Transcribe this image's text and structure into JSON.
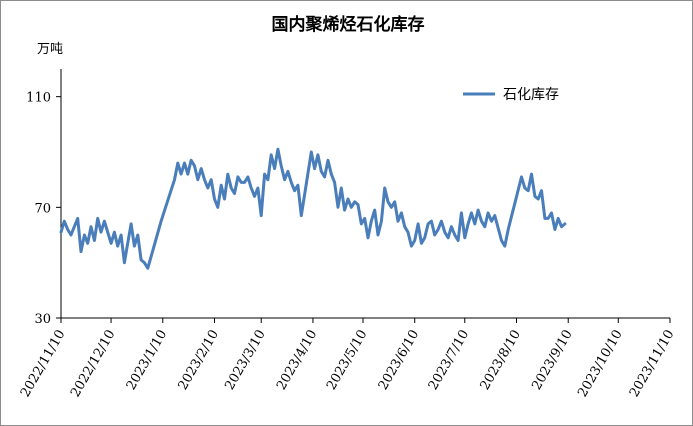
{
  "chart_data": {
    "type": "line",
    "title": "国内聚烯烃石化库存",
    "y_unit": "万吨",
    "ylim": [
      30,
      120
    ],
    "y_ticks": [
      30,
      70,
      110
    ],
    "x_ticks": [
      "2022/11/10",
      "2022/12/10",
      "2023/1/10",
      "2023/2/10",
      "2023/3/10",
      "2023/4/10",
      "2023/5/10",
      "2023/6/10",
      "2023/7/10",
      "2023/8/10",
      "2023/9/10",
      "2023/10/10",
      "2023/11/10"
    ],
    "xlim": [
      "2022/11/10",
      "2023/11/10"
    ],
    "legend_position": "top-right",
    "grid": false,
    "color": "#4a7ebb",
    "series": [
      {
        "name": "石化库存",
        "points": [
          [
            "2022/11/10",
            61
          ],
          [
            "2022/11/12",
            65
          ],
          [
            "2022/11/14",
            62
          ],
          [
            "2022/11/16",
            60
          ],
          [
            "2022/11/18",
            63
          ],
          [
            "2022/11/20",
            66
          ],
          [
            "2022/11/22",
            54
          ],
          [
            "2022/11/24",
            60
          ],
          [
            "2022/11/26",
            57
          ],
          [
            "2022/11/28",
            63
          ],
          [
            "2022/11/30",
            58
          ],
          [
            "2022/12/2",
            66
          ],
          [
            "2022/12/4",
            61
          ],
          [
            "2022/12/6",
            65
          ],
          [
            "2022/12/8",
            61
          ],
          [
            "2022/12/10",
            57
          ],
          [
            "2022/12/12",
            61
          ],
          [
            "2022/12/14",
            56
          ],
          [
            "2022/12/16",
            60
          ],
          [
            "2022/12/18",
            50
          ],
          [
            "2022/12/20",
            57
          ],
          [
            "2022/12/22",
            64
          ],
          [
            "2022/12/24",
            56
          ],
          [
            "2022/12/26",
            60
          ],
          [
            "2022/12/28",
            51
          ],
          [
            "2022/12/30",
            50
          ],
          [
            "2023/1/1",
            48
          ],
          [
            "2023/1/9",
            65
          ],
          [
            "2023/1/17",
            80
          ],
          [
            "2023/1/19",
            86
          ],
          [
            "2023/1/21",
            82
          ],
          [
            "2023/1/23",
            86
          ],
          [
            "2023/1/25",
            82
          ],
          [
            "2023/1/27",
            87
          ],
          [
            "2023/1/29",
            85
          ],
          [
            "2023/1/31",
            80
          ],
          [
            "2023/2/2",
            84
          ],
          [
            "2023/2/4",
            80
          ],
          [
            "2023/2/6",
            77
          ],
          [
            "2023/2/8",
            80
          ],
          [
            "2023/2/10",
            73
          ],
          [
            "2023/2/12",
            70
          ],
          [
            "2023/2/14",
            78
          ],
          [
            "2023/2/16",
            73
          ],
          [
            "2023/2/18",
            82
          ],
          [
            "2023/2/20",
            77
          ],
          [
            "2023/2/22",
            75
          ],
          [
            "2023/2/24",
            81
          ],
          [
            "2023/2/26",
            79
          ],
          [
            "2023/2/28",
            79
          ],
          [
            "2023/3/2",
            81
          ],
          [
            "2023/3/4",
            77
          ],
          [
            "2023/3/6",
            74
          ],
          [
            "2023/3/8",
            77
          ],
          [
            "2023/3/10",
            67
          ],
          [
            "2023/3/12",
            82
          ],
          [
            "2023/3/14",
            80
          ],
          [
            "2023/3/16",
            89
          ],
          [
            "2023/3/18",
            84
          ],
          [
            "2023/3/20",
            91
          ],
          [
            "2023/3/22",
            85
          ],
          [
            "2023/3/24",
            80
          ],
          [
            "2023/3/26",
            83
          ],
          [
            "2023/3/28",
            79
          ],
          [
            "2023/3/30",
            76
          ],
          [
            "2023/4/1",
            78
          ],
          [
            "2023/4/3",
            67
          ],
          [
            "2023/4/9",
            90
          ],
          [
            "2023/4/11",
            84
          ],
          [
            "2023/4/13",
            89
          ],
          [
            "2023/4/15",
            83
          ],
          [
            "2023/4/17",
            81
          ],
          [
            "2023/4/19",
            87
          ],
          [
            "2023/4/21",
            82
          ],
          [
            "2023/4/23",
            79
          ],
          [
            "2023/4/25",
            70
          ],
          [
            "2023/4/27",
            77
          ],
          [
            "2023/4/29",
            69
          ],
          [
            "2023/5/1",
            73
          ],
          [
            "2023/5/3",
            70
          ],
          [
            "2023/5/5",
            72
          ],
          [
            "2023/5/7",
            71
          ],
          [
            "2023/5/9",
            64
          ],
          [
            "2023/5/11",
            66
          ],
          [
            "2023/5/13",
            59
          ],
          [
            "2023/5/15",
            65
          ],
          [
            "2023/5/17",
            69
          ],
          [
            "2023/5/19",
            60
          ],
          [
            "2023/5/21",
            65
          ],
          [
            "2023/5/23",
            77
          ],
          [
            "2023/5/25",
            72
          ],
          [
            "2023/5/27",
            70
          ],
          [
            "2023/5/29",
            72
          ],
          [
            "2023/5/31",
            65
          ],
          [
            "2023/6/2",
            68
          ],
          [
            "2023/6/4",
            63
          ],
          [
            "2023/6/6",
            61
          ],
          [
            "2023/6/8",
            56
          ],
          [
            "2023/6/10",
            58
          ],
          [
            "2023/6/12",
            64
          ],
          [
            "2023/6/14",
            57
          ],
          [
            "2023/6/16",
            59
          ],
          [
            "2023/6/18",
            64
          ],
          [
            "2023/6/20",
            65
          ],
          [
            "2023/6/22",
            60
          ],
          [
            "2023/6/24",
            62
          ],
          [
            "2023/6/26",
            65
          ],
          [
            "2023/6/28",
            61
          ],
          [
            "2023/6/30",
            59
          ],
          [
            "2023/7/2",
            63
          ],
          [
            "2023/7/4",
            60
          ],
          [
            "2023/7/6",
            58
          ],
          [
            "2023/7/8",
            68
          ],
          [
            "2023/7/10",
            59
          ],
          [
            "2023/7/12",
            64
          ],
          [
            "2023/7/14",
            68
          ],
          [
            "2023/7/16",
            64
          ],
          [
            "2023/7/18",
            69
          ],
          [
            "2023/7/20",
            65
          ],
          [
            "2023/7/22",
            63
          ],
          [
            "2023/7/24",
            68
          ],
          [
            "2023/7/26",
            65
          ],
          [
            "2023/7/28",
            67
          ],
          [
            "2023/8/1",
            58
          ],
          [
            "2023/8/3",
            56
          ],
          [
            "2023/8/5",
            62
          ],
          [
            "2023/8/13",
            81
          ],
          [
            "2023/8/15",
            77
          ],
          [
            "2023/8/17",
            76
          ],
          [
            "2023/8/19",
            82
          ],
          [
            "2023/8/21",
            74
          ],
          [
            "2023/8/23",
            73
          ],
          [
            "2023/8/25",
            76
          ],
          [
            "2023/8/27",
            66
          ],
          [
            "2023/8/29",
            66
          ],
          [
            "2023/8/31",
            68
          ],
          [
            "2023/9/2",
            62
          ],
          [
            "2023/9/4",
            66
          ],
          [
            "2023/9/6",
            63
          ],
          [
            "2023/9/8",
            64
          ]
        ]
      }
    ]
  }
}
